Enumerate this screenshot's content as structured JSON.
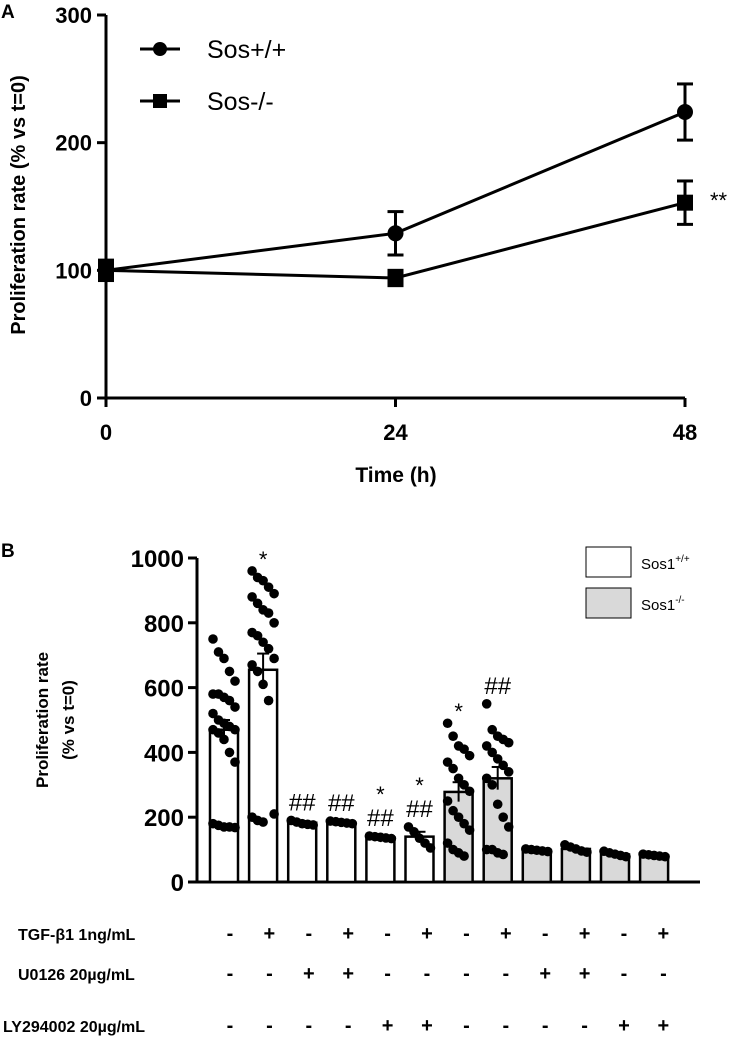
{
  "panel_a": {
    "letter": "A",
    "chart_data": {
      "type": "line",
      "x": [
        0,
        24,
        48
      ],
      "series": [
        {
          "name": "Sos+/+",
          "marker": "circle",
          "values": [
            100,
            129,
            224
          ],
          "errors": [
            7,
            17,
            22
          ]
        },
        {
          "name": "Sos-/-",
          "marker": "square",
          "values": [
            100,
            94,
            153
          ],
          "errors": [
            8,
            6,
            17
          ]
        }
      ],
      "xlabel": "Time (h)",
      "ylabel": "Proliferation rate (% vs t=0)",
      "xticks": [
        "0",
        "24",
        "48"
      ],
      "yticks": [
        "0",
        "100",
        "200",
        "300"
      ],
      "xlim": [
        0,
        48
      ],
      "ylim": [
        0,
        300
      ],
      "annotation": "**",
      "legend_position": "top-left"
    }
  },
  "panel_b": {
    "letter": "B",
    "chart_data": {
      "type": "bar",
      "ylabel_line1": "Proliferation rate",
      "ylabel_line2": "(% vs t=0)",
      "yticks": [
        "0",
        "200",
        "400",
        "600",
        "800",
        "1000"
      ],
      "ylim": [
        0,
        1000
      ],
      "legend": [
        {
          "base": "Sos1",
          "sup": "+/+",
          "color": "#ffffff"
        },
        {
          "base": "Sos1",
          "sup": "-/-",
          "color": "#d9d9d9"
        }
      ],
      "bars": [
        {
          "group": "Sos1+/+",
          "value": 470,
          "error": 30,
          "star": "",
          "hash": "",
          "points": [
            750,
            710,
            690,
            650,
            620,
            580,
            580,
            570,
            560,
            540,
            520,
            500,
            490,
            480,
            470,
            470,
            460,
            440,
            400,
            370,
            180,
            175,
            170,
            170,
            168
          ]
        },
        {
          "group": "Sos1+/+",
          "value": 655,
          "error": 50,
          "star": "*",
          "hash": "",
          "points": [
            960,
            940,
            930,
            910,
            890,
            880,
            860,
            840,
            830,
            800,
            770,
            760,
            740,
            720,
            690,
            670,
            650,
            610,
            560,
            210,
            200,
            190,
            185
          ]
        },
        {
          "group": "Sos1+/+",
          "value": 183,
          "error": 5,
          "star": "",
          "hash": "##",
          "points": [
            190,
            185,
            180,
            178,
            176
          ]
        },
        {
          "group": "Sos1+/+",
          "value": 184,
          "error": 4,
          "star": "",
          "hash": "##",
          "points": [
            188,
            186,
            184,
            182,
            180
          ]
        },
        {
          "group": "Sos1+/+",
          "value": 138,
          "error": 4,
          "star": "*",
          "hash": "##",
          "points": [
            142,
            140,
            138,
            136,
            134
          ]
        },
        {
          "group": "Sos1+/+",
          "value": 140,
          "error": 15,
          "star": "*",
          "hash": "##",
          "points": [
            170,
            155,
            135,
            120,
            105
          ]
        },
        {
          "group": "Sos1-/-",
          "value": 278,
          "error": 30,
          "star": "*",
          "hash": "",
          "points": [
            490,
            450,
            420,
            410,
            390,
            370,
            350,
            320,
            300,
            280,
            250,
            220,
            200,
            180,
            160,
            120,
            100,
            90,
            80
          ]
        },
        {
          "group": "Sos1-/-",
          "value": 320,
          "error": 35,
          "star": "",
          "hash": "##",
          "points": [
            550,
            470,
            450,
            440,
            430,
            420,
            400,
            380,
            360,
            340,
            320,
            300,
            240,
            200,
            170,
            100,
            100,
            90,
            85
          ]
        },
        {
          "group": "Sos1-/-",
          "value": 97,
          "error": 3,
          "star": "",
          "hash": "",
          "points": [
            102,
            100,
            98,
            96,
            94
          ]
        },
        {
          "group": "Sos1-/-",
          "value": 102,
          "error": 4,
          "star": "",
          "hash": "",
          "points": [
            115,
            108,
            102,
            96,
            92
          ]
        },
        {
          "group": "Sos1-/-",
          "value": 85,
          "error": 4,
          "star": "",
          "hash": "",
          "points": [
            95,
            90,
            86,
            82,
            78
          ]
        },
        {
          "group": "Sos1-/-",
          "value": 82,
          "error": 2,
          "star": "",
          "hash": "",
          "points": [
            86,
            84,
            82,
            80,
            78
          ]
        }
      ],
      "treatments": [
        {
          "label": "TGF-β1 1ng/mL",
          "signs": [
            "-",
            "+",
            "-",
            "+",
            "-",
            "+",
            "-",
            "+",
            "-",
            "+",
            "-",
            "+"
          ]
        },
        {
          "label": "U0126 20µg/mL",
          "signs": [
            "-",
            "-",
            "+",
            "+",
            "-",
            "-",
            "-",
            "-",
            "+",
            "+",
            "-",
            "-"
          ]
        },
        {
          "label": "LY294002 20µg/mL",
          "signs": [
            "-",
            "-",
            "-",
            "-",
            "+",
            "+",
            "-",
            "-",
            "-",
            "-",
            "+",
            "+"
          ]
        }
      ]
    }
  }
}
